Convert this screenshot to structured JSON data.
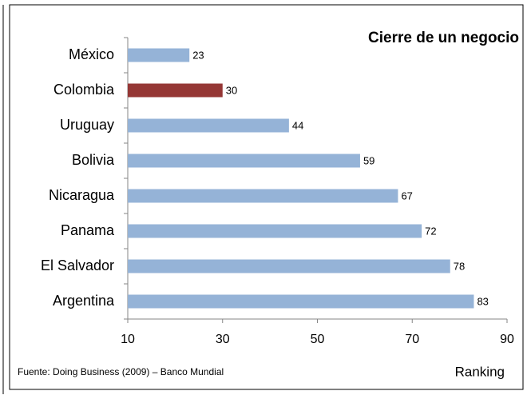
{
  "chart_data": {
    "type": "bar",
    "orientation": "horizontal",
    "title": "Cierre de un negocio",
    "categories": [
      "México",
      "Colombia",
      "Uruguay",
      "Bolivia",
      "Nicaragua",
      "Panama",
      "El Salvador",
      "Argentina"
    ],
    "values": [
      23,
      30,
      44,
      59,
      67,
      72,
      78,
      83
    ],
    "colors": [
      "#95b3d7",
      "#953735",
      "#95b3d7",
      "#95b3d7",
      "#95b3d7",
      "#95b3d7",
      "#95b3d7",
      "#95b3d7"
    ],
    "xlim": [
      10,
      90
    ],
    "xticks": [
      10,
      30,
      50,
      70,
      90
    ],
    "xlabel": "Ranking",
    "source": "Fuente: Doing Business (2009) – Banco Mundial"
  }
}
